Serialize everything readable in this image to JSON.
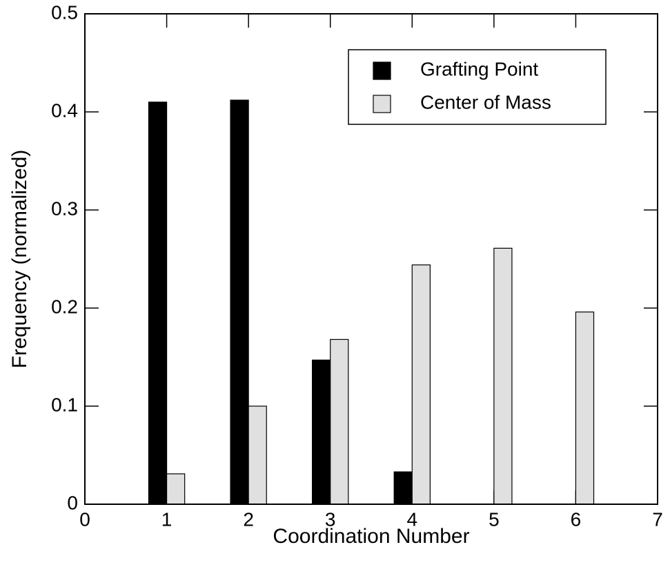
{
  "chart_data": {
    "type": "bar",
    "xlabel": "Coordination Number",
    "ylabel": "Frequency (normalized)",
    "x": [
      1,
      2,
      3,
      4,
      5,
      6
    ],
    "series": [
      {
        "name": "Grafting Point",
        "color": "#000000",
        "values": [
          0.41,
          0.412,
          0.147,
          0.033,
          0,
          0
        ]
      },
      {
        "name": "Center of Mass",
        "color": "#e0e0e0",
        "values": [
          0.031,
          0.1,
          0.168,
          0.244,
          0.261,
          0.196
        ]
      }
    ],
    "xlim": [
      0,
      7
    ],
    "xticks": [
      0,
      1,
      2,
      3,
      4,
      5,
      6,
      7
    ],
    "ylim": [
      0,
      0.5
    ],
    "yticks": [
      0,
      0.1,
      0.2,
      0.3,
      0.4,
      0.5
    ],
    "legend": "upper right"
  }
}
